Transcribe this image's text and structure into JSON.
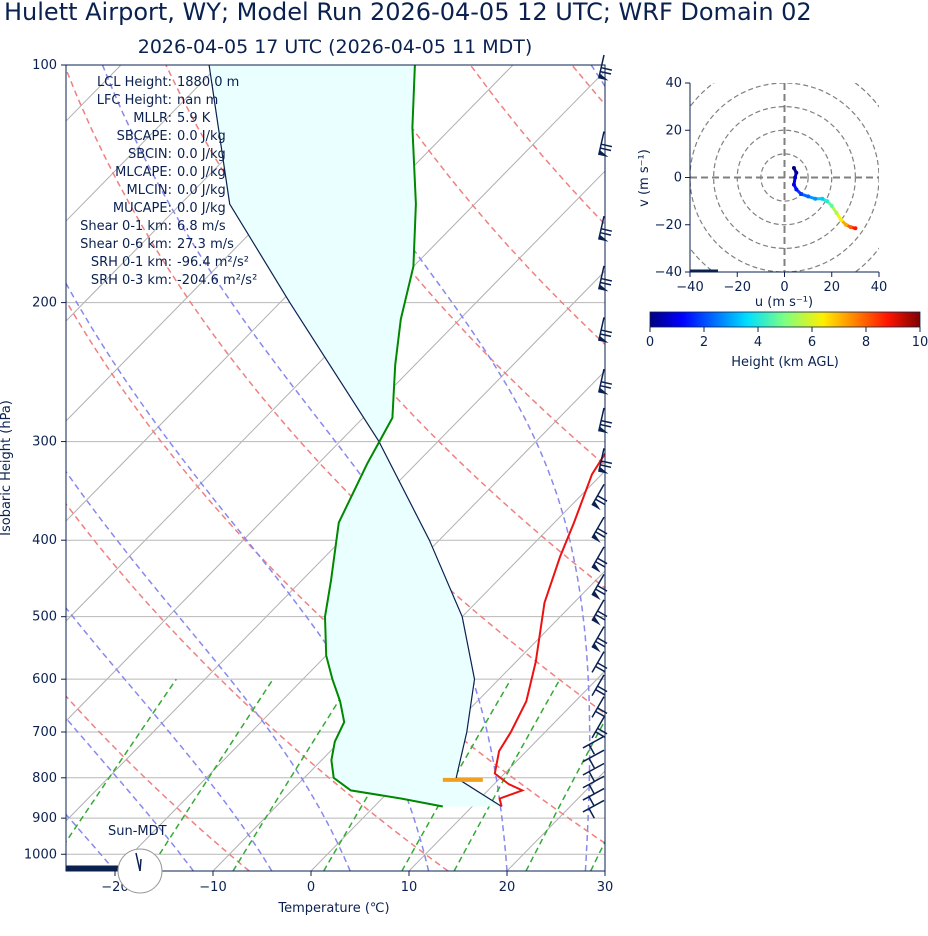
{
  "title": "Hulett Airport, WY; Model Run 2026-04-05 12 UTC; WRF Domain 02",
  "subtitle": "2026-04-05 17 UTC  (2026-04-05 11 MDT)",
  "colors": {
    "temperature": "#ee1111",
    "dewpoint": "#008800",
    "parcel": "#0a2150",
    "cape_fill": "#eaffff",
    "isotherm": "#b0b0b0",
    "dry_adiabat": "#f08080",
    "moist_adiabat": "#8888ee",
    "mixing_ratio": "#33aa33",
    "lcl_marker": "#f0a020"
  },
  "indices": [
    {
      "label": "LCL Height:",
      "value": "1880.0 m"
    },
    {
      "label": "LFC Height:",
      "value": "nan m"
    },
    {
      "label": "MLLR:",
      "value": "5.9 K"
    },
    {
      "label": "SBCAPE:",
      "value": "0.0 J/kg"
    },
    {
      "label": "SBCIN:",
      "value": "0.0 J/kg"
    },
    {
      "label": "MLCAPE:",
      "value": "0.0 J/kg"
    },
    {
      "label": "MLCIN:",
      "value": "0.0 J/kg"
    },
    {
      "label": "MUCAPE:",
      "value": "0.0 J/kg"
    },
    {
      "label": "Shear 0-1 km:",
      "value": "6.8 m/s"
    },
    {
      "label": "Shear 0-6 km:",
      "value": "27.3 m/s"
    },
    {
      "label": "SRH 0-1 km:",
      "value": "-96.4 m²/s²"
    },
    {
      "label": "SRH 0-3 km:",
      "value": "-204.6 m²/s²"
    }
  ],
  "sun_label": "Sun-MDT",
  "chart_data": [
    {
      "type": "line",
      "kind": "skew-T log-p",
      "xlabel": "Temperature (℃)",
      "ylabel": "Isobaric Height (hPa)",
      "xlim": [
        -25,
        30
      ],
      "ylim": [
        1050,
        100
      ],
      "x_ticks": [
        "−20",
        "−10",
        "0",
        "10",
        "20",
        "30"
      ],
      "x_tick_values": [
        -20,
        -10,
        0,
        10,
        20,
        30
      ],
      "y_ticks": [
        "100",
        "200",
        "300",
        "400",
        "500",
        "600",
        "700",
        "800",
        "900",
        "1000"
      ],
      "y_tick_values": [
        100,
        200,
        300,
        400,
        500,
        600,
        700,
        800,
        900,
        1000
      ],
      "series": [
        {
          "id": "temperature",
          "points": [
            [
              13,
              870
            ],
            [
              12,
              850
            ],
            [
              13.5,
              830
            ],
            [
              11.5,
              815
            ],
            [
              9,
              790
            ],
            [
              7.2,
              740
            ],
            [
              6.5,
              700
            ],
            [
              5,
              640
            ],
            [
              2,
              570
            ],
            [
              -3,
              480
            ],
            [
              -6,
              420
            ],
            [
              -8,
              380
            ],
            [
              -11,
              330
            ],
            [
              -13,
              280
            ],
            [
              -14,
              250
            ],
            [
              -16.5,
              220
            ],
            [
              -20,
              200
            ],
            [
              -24,
              180
            ],
            [
              -25,
              160
            ],
            [
              -30,
              130
            ],
            [
              -34,
              110
            ],
            [
              -36,
              100
            ]
          ]
        },
        {
          "id": "dewpoint",
          "points": [
            [
              7,
              870
            ],
            [
              2,
              850
            ],
            [
              -4,
              830
            ],
            [
              -7,
              800
            ],
            [
              -9,
              760
            ],
            [
              -10.5,
              720
            ],
            [
              -11.5,
              680
            ],
            [
              -14,
              640
            ],
            [
              -17,
              600
            ],
            [
              -20,
              560
            ],
            [
              -24,
              500
            ],
            [
              -27,
              450
            ],
            [
              -32,
              380
            ],
            [
              -35,
              320
            ],
            [
              -37,
              280
            ],
            [
              -42,
              240
            ],
            [
              -46,
              210
            ],
            [
              -50,
              180
            ],
            [
              -56,
              150
            ],
            [
              -64,
              120
            ],
            [
              -70,
              100
            ]
          ]
        },
        {
          "id": "parcel",
          "points": [
            [
              13,
              870
            ],
            [
              5.5,
              800
            ],
            [
              2,
              700
            ],
            [
              -2.5,
              600
            ],
            [
              -10,
              500
            ],
            [
              -21,
              400
            ],
            [
              -36,
              300
            ],
            [
              -59,
              200
            ],
            [
              -75,
              150
            ],
            [
              -91,
              100
            ]
          ]
        }
      ],
      "lcl": {
        "pressure": 805,
        "temperature": 7.2
      }
    },
    {
      "type": "line",
      "kind": "hodograph",
      "xlabel": "u (m s⁻¹)",
      "ylabel": "v (m s⁻¹)",
      "xlim": [
        -40,
        40
      ],
      "ylim": [
        -40,
        40
      ],
      "x_ticks": [
        "−40",
        "−20",
        "0",
        "20",
        "40"
      ],
      "y_ticks": [
        "40",
        "20",
        "0",
        "−20",
        "−40"
      ],
      "rings": [
        10,
        20,
        30,
        40
      ],
      "points": [
        [
          4,
          4
        ],
        [
          5,
          2
        ],
        [
          4.5,
          0
        ],
        [
          4,
          -3
        ],
        [
          5,
          -5
        ],
        [
          7,
          -7
        ],
        [
          10,
          -8
        ],
        [
          13,
          -9
        ],
        [
          16,
          -9
        ],
        [
          18,
          -10
        ],
        [
          20,
          -12
        ],
        [
          22,
          -15
        ],
        [
          24,
          -18
        ],
        [
          26,
          -20
        ],
        [
          28,
          -21
        ],
        [
          30,
          -21.5
        ]
      ],
      "heights_km": [
        0.0,
        0.3,
        0.6,
        1.0,
        1.4,
        1.8,
        2.3,
        2.8,
        3.4,
        4.0,
        4.7,
        5.5,
        6.3,
        7.2,
        8.0,
        8.8
      ]
    },
    {
      "type": "heatmap",
      "kind": "colorbar",
      "label": "Height (km AGL)",
      "ticks": [
        "0",
        "2",
        "4",
        "6",
        "8",
        "10"
      ],
      "range": [
        0,
        10
      ]
    }
  ]
}
